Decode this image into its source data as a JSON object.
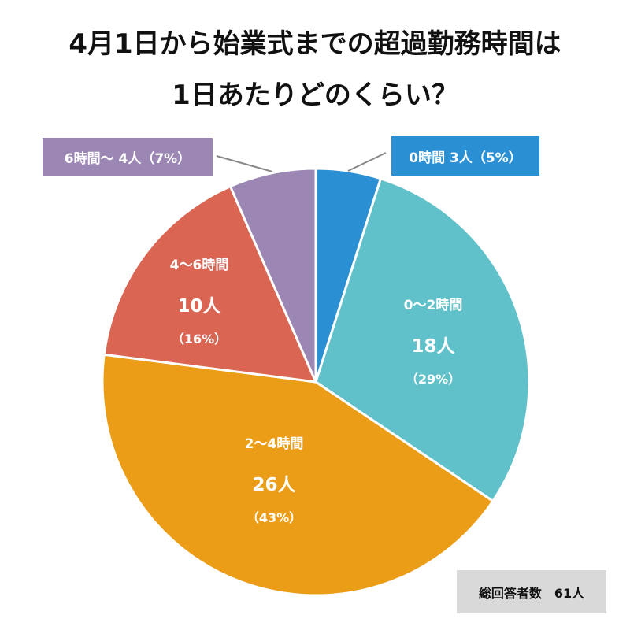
{
  "title": {
    "line1": "4月1日から始業式までの超過勤務時間は",
    "line2": "1日あたりどのくらい？"
  },
  "total": "総回答者数　61人",
  "chart_data": {
    "type": "pie",
    "title": "4月1日から始業式までの超過勤務時間は 1日あたりどのくらい？",
    "unit": "人",
    "slices": [
      {
        "label": "0時間",
        "count": 3,
        "count_label": "3人",
        "percent_label": "（5%）",
        "color": "#2b8fd3"
      },
      {
        "label": "0～2時間",
        "count": 18,
        "count_label": "18人",
        "percent_label": "（29%）",
        "color": "#61c1ca"
      },
      {
        "label": "2～4時間",
        "count": 26,
        "count_label": "26人",
        "percent_label": "（43%）",
        "color": "#eb9d17"
      },
      {
        "label": "4～6時間",
        "count": 10,
        "count_label": "10人",
        "percent_label": "（16%）",
        "color": "#d96552"
      },
      {
        "label": "6時間～",
        "count": 4,
        "count_label": "4人",
        "percent_label": "（7%）",
        "color": "#9b86b4"
      }
    ],
    "callouts": {
      "zero": "0時間 3人（5%）",
      "six_plus": "6時間～ 4人（7%）"
    }
  }
}
